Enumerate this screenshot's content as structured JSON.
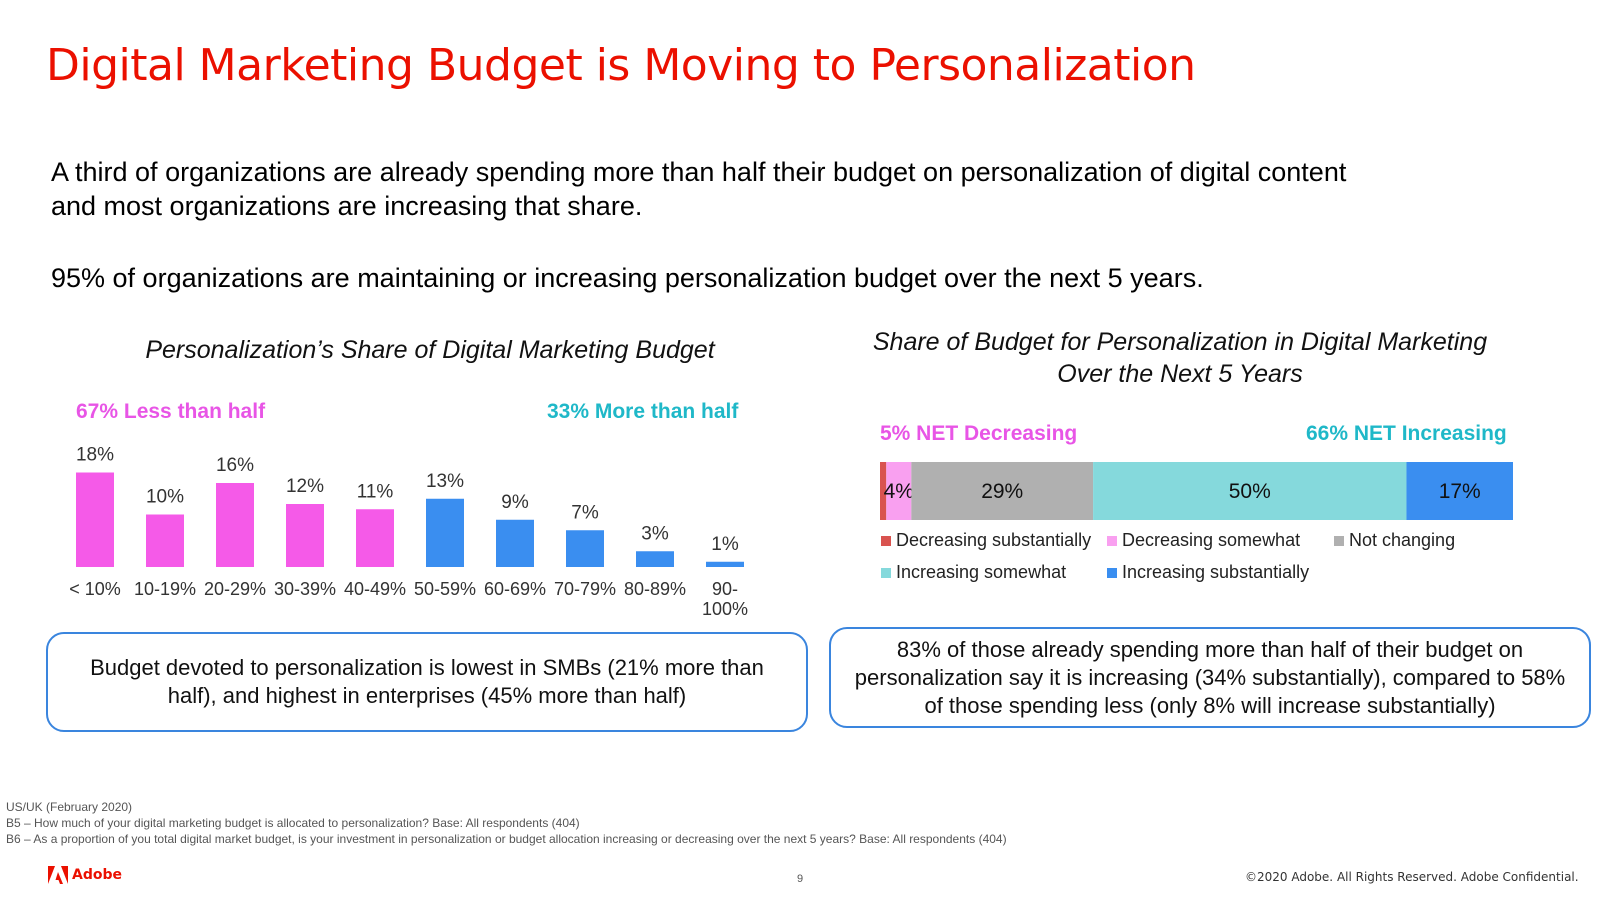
{
  "title": "Digital Marketing Budget is Moving to Personalization",
  "bullets": {
    "line1": "A third of organizations are already spending more than half their budget on personalization of digital content",
    "line1b": "and most organizations are increasing that share.",
    "line2": "95% of organizations are maintaining or increasing personalization budget over the next 5 years."
  },
  "chart_data": [
    {
      "type": "bar",
      "title": "Personalization’s Share of Digital Marketing Budget",
      "categories": [
        "< 10%",
        "10-19%",
        "20-29%",
        "30-39%",
        "40-49%",
        "50-59%",
        "60-69%",
        "70-79%",
        "80-89%",
        "90-100%"
      ],
      "category_lines": [
        [
          "< 10%"
        ],
        [
          "10-19%"
        ],
        [
          "20-29%"
        ],
        [
          "30-39%"
        ],
        [
          "40-49%"
        ],
        [
          "50-59%"
        ],
        [
          "60-69%"
        ],
        [
          "70-79%"
        ],
        [
          "80-89%"
        ],
        [
          "90-",
          "100%"
        ]
      ],
      "values": [
        18,
        10,
        16,
        12,
        11,
        13,
        9,
        7,
        3,
        1
      ],
      "value_labels": [
        "18%",
        "10%",
        "16%",
        "12%",
        "11%",
        "13%",
        "9%",
        "7%",
        "3%",
        "1%"
      ],
      "groups": [
        {
          "label": "67%  Less than half",
          "color": "#f55ae8",
          "category_count": 5
        },
        {
          "label": "33%  More than half",
          "color": "#3a8ef0",
          "category_count": 5
        }
      ],
      "ylim": [
        0,
        20
      ],
      "xlabel": "",
      "ylabel": ""
    },
    {
      "type": "bar",
      "orientation": "horizontal-stacked",
      "title": "Share of Budget for Personalization in Digital Marketing Over the Next 5 Years",
      "title_lines": [
        "Share of Budget for Personalization in Digital Marketing",
        "Over the Next 5 Years"
      ],
      "series": [
        {
          "name": "Decreasing substantially",
          "value": 1,
          "label": "",
          "color": "#d9534f"
        },
        {
          "name": "Decreasing somewhat",
          "value": 4,
          "label": "4%",
          "color": "#f9a0f0"
        },
        {
          "name": "Not changing",
          "value": 29,
          "label": "29%",
          "color": "#b0b0b0"
        },
        {
          "name": "Increasing somewhat",
          "value": 50,
          "label": "50%",
          "color": "#85d9dc"
        },
        {
          "name": "Increasing substantially",
          "value": 17,
          "label": "17%",
          "color": "#3a8ef0"
        }
      ],
      "net_labels": {
        "decreasing": "5%  NET Decreasing",
        "increasing": "66%  NET Increasing"
      }
    }
  ],
  "callouts": {
    "left": "Budget devoted to personalization is lowest in SMBs (21% more than half), and highest in enterprises (45% more than half)",
    "right": "83% of those already spending more than half of their budget on personalization say it is increasing (34% substantially), compared to 58% of those spending less (only 8% will increase substantially)"
  },
  "footnotes": {
    "line1": "US/UK (February 2020)",
    "line2": "B5 –  How much of your digital marketing budget is allocated to personalization? Base: All respondents (404)",
    "line3": "B6 – As a proportion of you total digital market budget, is your investment in personalization or budget allocation increasing or decreasing over the next 5 years? Base: All respondents (404)"
  },
  "footer": {
    "logo": "Adobe",
    "page_number": "9",
    "copyright": "©2020 Adobe. All Rights Reserved. Adobe Confidential."
  },
  "colors": {
    "title": "#eb1000",
    "callout_border": "#3a85de"
  }
}
